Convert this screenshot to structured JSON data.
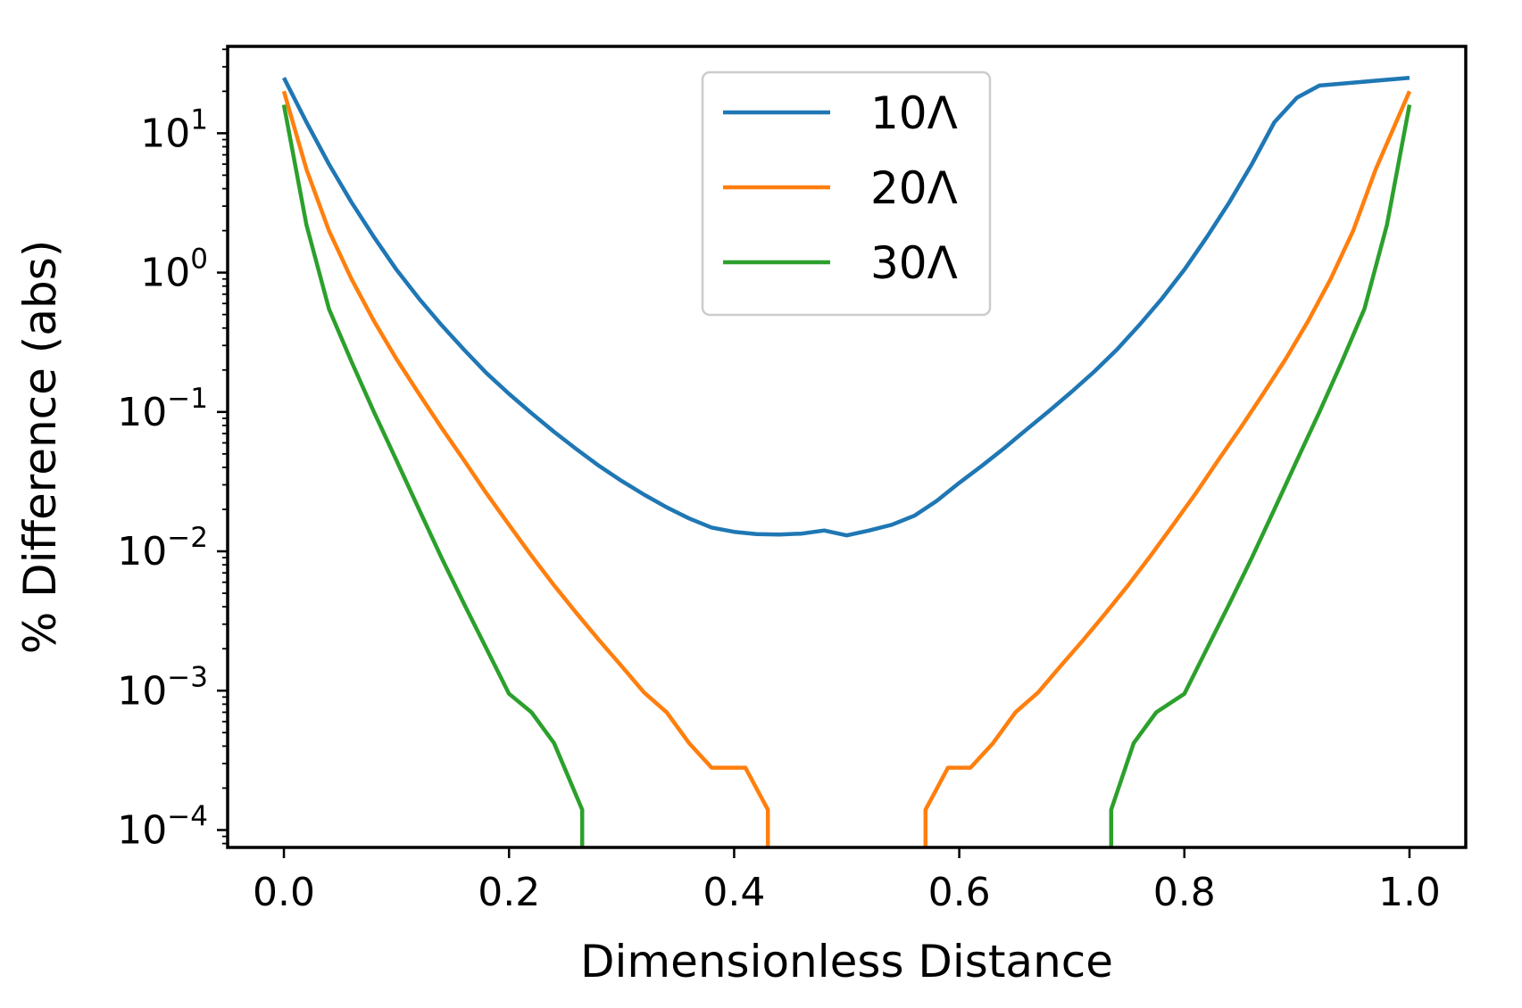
{
  "chart_data": {
    "type": "line",
    "xlabel": "Dimensionless Distance",
    "ylabel": "% Difference (abs)",
    "xlim": [
      -0.05,
      1.05
    ],
    "ylim": [
      7.5e-05,
      42
    ],
    "yscale": "log",
    "grid": false,
    "legend_position": "top-center",
    "x_ticks": [
      {
        "value": 0.0,
        "label": "0.0"
      },
      {
        "value": 0.2,
        "label": "0.2"
      },
      {
        "value": 0.4,
        "label": "0.4"
      },
      {
        "value": 0.6,
        "label": "0.6"
      },
      {
        "value": 0.8,
        "label": "0.8"
      },
      {
        "value": 1.0,
        "label": "1.0"
      }
    ],
    "y_ticks": [
      {
        "value": 10,
        "base": "10",
        "exp": "1"
      },
      {
        "value": 1,
        "base": "10",
        "exp": "0"
      },
      {
        "value": 0.1,
        "base": "10",
        "exp": "−1"
      },
      {
        "value": 0.01,
        "base": "10",
        "exp": "−2"
      },
      {
        "value": 0.001,
        "base": "10",
        "exp": "−3"
      },
      {
        "value": 0.0001,
        "base": "10",
        "exp": "−4"
      }
    ],
    "series": [
      {
        "name": "10Λ",
        "color": "#1f77b4",
        "points": [
          [
            0.0,
            25
          ],
          [
            0.02,
            12
          ],
          [
            0.04,
            6.0
          ],
          [
            0.06,
            3.2
          ],
          [
            0.08,
            1.8
          ],
          [
            0.1,
            1.05
          ],
          [
            0.12,
            0.65
          ],
          [
            0.14,
            0.42
          ],
          [
            0.16,
            0.28
          ],
          [
            0.18,
            0.19
          ],
          [
            0.2,
            0.135
          ],
          [
            0.22,
            0.098
          ],
          [
            0.24,
            0.072
          ],
          [
            0.26,
            0.054
          ],
          [
            0.28,
            0.041
          ],
          [
            0.3,
            0.032
          ],
          [
            0.32,
            0.0255
          ],
          [
            0.34,
            0.0207
          ],
          [
            0.36,
            0.0172
          ],
          [
            0.38,
            0.0148
          ],
          [
            0.4,
            0.0138
          ],
          [
            0.42,
            0.0133
          ],
          [
            0.44,
            0.0132
          ],
          [
            0.46,
            0.0134
          ],
          [
            0.48,
            0.0141
          ],
          [
            0.5,
            0.013
          ],
          [
            0.52,
            0.0141
          ],
          [
            0.54,
            0.0155
          ],
          [
            0.56,
            0.018
          ],
          [
            0.58,
            0.023
          ],
          [
            0.6,
            0.031
          ],
          [
            0.62,
            0.041
          ],
          [
            0.64,
            0.055
          ],
          [
            0.66,
            0.075
          ],
          [
            0.68,
            0.102
          ],
          [
            0.7,
            0.14
          ],
          [
            0.72,
            0.195
          ],
          [
            0.74,
            0.28
          ],
          [
            0.76,
            0.42
          ],
          [
            0.78,
            0.65
          ],
          [
            0.8,
            1.05
          ],
          [
            0.82,
            1.8
          ],
          [
            0.84,
            3.2
          ],
          [
            0.86,
            6.0
          ],
          [
            0.88,
            12
          ],
          [
            0.9,
            18
          ],
          [
            0.92,
            22
          ],
          [
            1.0,
            25
          ]
        ]
      },
      {
        "name": "20Λ",
        "color": "#ff7f0e",
        "points": [
          [
            0.0,
            20
          ],
          [
            0.02,
            5.5
          ],
          [
            0.04,
            2.0
          ],
          [
            0.06,
            0.9
          ],
          [
            0.08,
            0.45
          ],
          [
            0.1,
            0.24
          ],
          [
            0.12,
            0.135
          ],
          [
            0.14,
            0.077
          ],
          [
            0.16,
            0.045
          ],
          [
            0.18,
            0.026
          ],
          [
            0.2,
            0.0155
          ],
          [
            0.22,
            0.0093
          ],
          [
            0.24,
            0.0057
          ],
          [
            0.26,
            0.0036
          ],
          [
            0.28,
            0.0023
          ],
          [
            0.3,
            0.0015
          ],
          [
            0.32,
            0.00097
          ],
          [
            0.34,
            0.0007
          ],
          [
            0.36,
            0.00042
          ],
          [
            0.38,
            0.00028
          ],
          [
            0.4,
            0.00028
          ],
          [
            0.41,
            0.00028
          ],
          [
            0.43,
            0.00014
          ],
          [
            0.43,
            7.5e-05
          ]
        ]
      },
      {
        "name": "20Λ-right",
        "color": "#ff7f0e",
        "points": [
          [
            0.57,
            7.5e-05
          ],
          [
            0.57,
            0.00014
          ],
          [
            0.59,
            0.00028
          ],
          [
            0.61,
            0.00028
          ],
          [
            0.63,
            0.00042
          ],
          [
            0.65,
            0.0007
          ],
          [
            0.67,
            0.00097
          ],
          [
            0.69,
            0.0015
          ],
          [
            0.71,
            0.0023
          ],
          [
            0.73,
            0.0036
          ],
          [
            0.75,
            0.0057
          ],
          [
            0.77,
            0.0093
          ],
          [
            0.79,
            0.0155
          ],
          [
            0.81,
            0.026
          ],
          [
            0.83,
            0.045
          ],
          [
            0.85,
            0.077
          ],
          [
            0.87,
            0.135
          ],
          [
            0.89,
            0.24
          ],
          [
            0.91,
            0.45
          ],
          [
            0.93,
            0.9
          ],
          [
            0.95,
            2.0
          ],
          [
            0.97,
            5.5
          ],
          [
            1.0,
            20
          ]
        ]
      },
      {
        "name": "30Λ",
        "color": "#2ca02c",
        "points": [
          [
            0.0,
            16
          ],
          [
            0.02,
            2.2
          ],
          [
            0.04,
            0.55
          ],
          [
            0.06,
            0.23
          ],
          [
            0.08,
            0.1
          ],
          [
            0.1,
            0.045
          ],
          [
            0.12,
            0.02
          ],
          [
            0.14,
            0.009
          ],
          [
            0.16,
            0.0042
          ],
          [
            0.18,
            0.002
          ],
          [
            0.2,
            0.00095
          ],
          [
            0.22,
            0.0007
          ],
          [
            0.24,
            0.00042
          ],
          [
            0.265,
            0.00014
          ],
          [
            0.265,
            7.5e-05
          ]
        ]
      },
      {
        "name": "30Λ-right",
        "color": "#2ca02c",
        "points": [
          [
            0.735,
            7.5e-05
          ],
          [
            0.735,
            0.00014
          ],
          [
            0.755,
            0.00042
          ],
          [
            0.775,
            0.0007
          ],
          [
            0.8,
            0.00095
          ],
          [
            0.82,
            0.002
          ],
          [
            0.84,
            0.0042
          ],
          [
            0.86,
            0.009
          ],
          [
            0.88,
            0.02
          ],
          [
            0.9,
            0.045
          ],
          [
            0.92,
            0.1
          ],
          [
            0.94,
            0.23
          ],
          [
            0.96,
            0.55
          ],
          [
            0.98,
            2.2
          ],
          [
            1.0,
            16
          ]
        ]
      }
    ],
    "legend": [
      {
        "label": "10Λ",
        "color": "#1f77b4"
      },
      {
        "label": "20Λ",
        "color": "#ff7f0e"
      },
      {
        "label": "30Λ",
        "color": "#2ca02c"
      }
    ]
  }
}
